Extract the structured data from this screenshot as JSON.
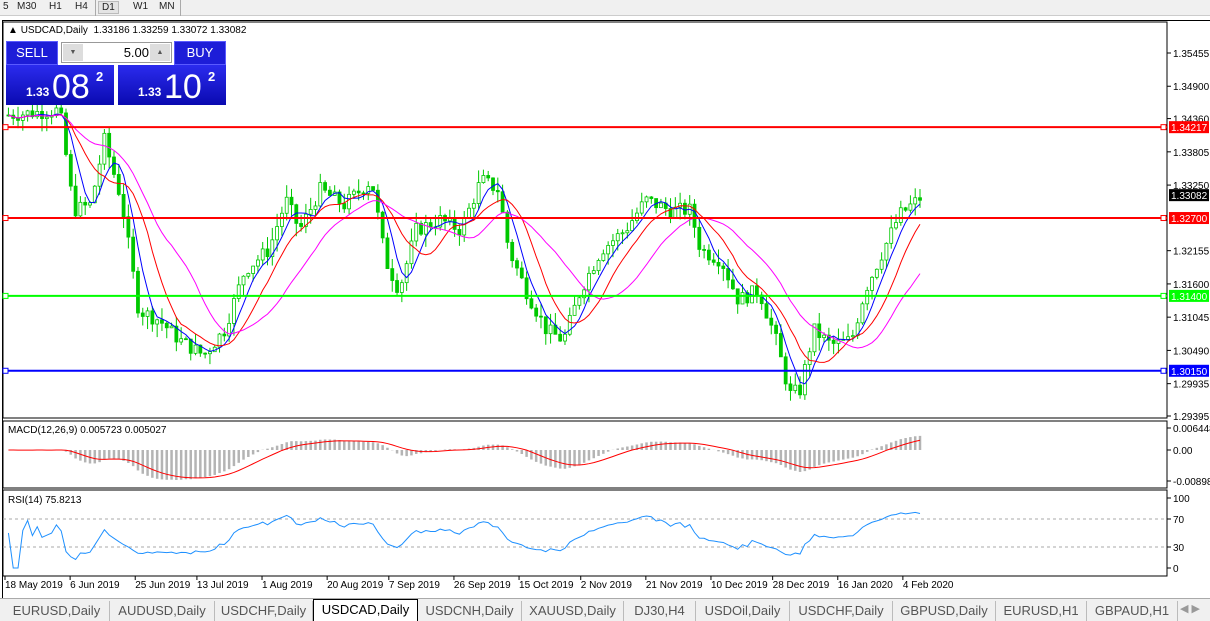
{
  "toolbar": {
    "timeframes": [
      "5",
      "M30",
      "H1",
      "H4",
      "D1",
      "W1",
      "MN"
    ],
    "active": "D1"
  },
  "chart": {
    "title": "USDCAD,Daily",
    "ohlc": "1.33186 1.33259 1.33072 1.33082"
  },
  "trade_panel": {
    "sell_label": "SELL",
    "buy_label": "BUY",
    "lot": "5.00",
    "bid": {
      "big": "1.33",
      "main": "08",
      "sup": "2"
    },
    "ask": {
      "big": "1.33",
      "main": "10",
      "sup": "2"
    }
  },
  "colors": {
    "bull": "#00c800",
    "bear": "#00c800",
    "ma_fast": "#0000ff",
    "ma_mid": "#ff0000",
    "ma_slow": "#ff00ff",
    "macd_hist": "#b4b4b4",
    "macd_signal": "#ff0000",
    "rsi": "#1e90ff"
  },
  "chart_data": {
    "type": "candlestick",
    "symbol": "USDCAD",
    "timeframe": "Daily",
    "ylim": [
      1.29395,
      1.35455
    ],
    "yticks": [
      "1.35455",
      "1.34900",
      "1.34360",
      "1.33805",
      "1.33250",
      "1.32155",
      "1.31600",
      "1.31045",
      "1.30490",
      "1.29935",
      "1.29395"
    ],
    "current_price": "1.33082",
    "hlines": [
      {
        "value": "1.34217",
        "color": "#ff0000"
      },
      {
        "value": "1.32700",
        "color": "#ff0000"
      },
      {
        "value": "1.31400",
        "color": "#00ff00"
      },
      {
        "value": "1.30150",
        "color": "#0000ff"
      }
    ],
    "xticks": [
      "18 May 2019",
      "6 Jun 2019",
      "25 Jun 2019",
      "13 Jul 2019",
      "1 Aug 2019",
      "20 Aug 2019",
      "7 Sep 2019",
      "26 Sep 2019",
      "15 Oct 2019",
      "2 Nov 2019",
      "21 Nov 2019",
      "10 Dec 2019",
      "28 Dec 2019",
      "16 Jan 2020",
      "4 Feb 2020"
    ],
    "close_path": [
      [
        "2019-05-19",
        1.3442
      ],
      [
        "2019-06-03",
        1.345
      ],
      [
        "2019-06-07",
        1.3283
      ],
      [
        "2019-06-12",
        1.3292
      ],
      [
        "2019-06-16",
        1.34
      ],
      [
        "2019-06-21",
        1.33
      ],
      [
        "2019-06-26",
        1.3116
      ],
      [
        "2019-07-02",
        1.31
      ],
      [
        "2019-07-08",
        1.3066
      ],
      [
        "2019-07-15",
        1.3041
      ],
      [
        "2019-07-21",
        1.3083
      ],
      [
        "2019-07-27",
        1.3183
      ],
      [
        "2019-08-03",
        1.3217
      ],
      [
        "2019-08-08",
        1.33
      ],
      [
        "2019-08-12",
        1.325
      ],
      [
        "2019-08-18",
        1.3317
      ],
      [
        "2019-08-25",
        1.3292
      ],
      [
        "2019-09-02",
        1.3334
      ],
      [
        "2019-09-06",
        1.32
      ],
      [
        "2019-09-10",
        1.315
      ],
      [
        "2019-09-15",
        1.325
      ],
      [
        "2019-09-22",
        1.3267
      ],
      [
        "2019-09-28",
        1.325
      ],
      [
        "2019-10-04",
        1.3334
      ],
      [
        "2019-10-09",
        1.3317
      ],
      [
        "2019-10-12",
        1.3217
      ],
      [
        "2019-10-17",
        1.315
      ],
      [
        "2019-10-23",
        1.3083
      ],
      [
        "2019-10-28",
        1.3066
      ],
      [
        "2019-11-02",
        1.315
      ],
      [
        "2019-11-08",
        1.3217
      ],
      [
        "2019-11-15",
        1.325
      ],
      [
        "2019-11-21",
        1.33
      ],
      [
        "2019-11-28",
        1.3283
      ],
      [
        "2019-12-04",
        1.3283
      ],
      [
        "2019-12-07",
        1.3217
      ],
      [
        "2019-12-13",
        1.32
      ],
      [
        "2019-12-18",
        1.3133
      ],
      [
        "2019-12-24",
        1.315
      ],
      [
        "2019-12-29",
        1.3066
      ],
      [
        "2020-01-02",
        1.2975
      ],
      [
        "2020-01-05",
        1.2983
      ],
      [
        "2020-01-09",
        1.3083
      ],
      [
        "2020-01-14",
        1.3058
      ],
      [
        "2020-01-20",
        1.3066
      ],
      [
        "2020-01-24",
        1.315
      ],
      [
        "2020-01-28",
        1.32
      ],
      [
        "2020-02-03",
        1.3275
      ],
      [
        "2020-02-10",
        1.3308
      ]
    ],
    "macd": {
      "label": "MACD(12,26,9) 0.005723 0.005027",
      "yticks": [
        "0.006448",
        "0.00",
        "-0.008982"
      ],
      "ylim": [
        -0.008982,
        0.006448
      ]
    },
    "rsi": {
      "label": "RSI(14) 75.8213",
      "yticks": [
        "100",
        "70",
        "30",
        "0"
      ],
      "levels": [
        70,
        30
      ],
      "ylim": [
        0,
        100
      ]
    }
  },
  "tabs": [
    {
      "label": "EURUSD,Daily"
    },
    {
      "label": "AUDUSD,Daily"
    },
    {
      "label": "USDCHF,Daily"
    },
    {
      "label": "USDCAD,Daily",
      "active": true
    },
    {
      "label": "USDCNH,Daily"
    },
    {
      "label": "XAUUSD,Daily"
    },
    {
      "label": "DJ30,H4"
    },
    {
      "label": "USDOil,Daily"
    },
    {
      "label": "USDCHF,Daily"
    },
    {
      "label": "GBPUSD,Daily"
    },
    {
      "label": "EURUSD,H1"
    },
    {
      "label": "GBPAUD,H1"
    }
  ]
}
